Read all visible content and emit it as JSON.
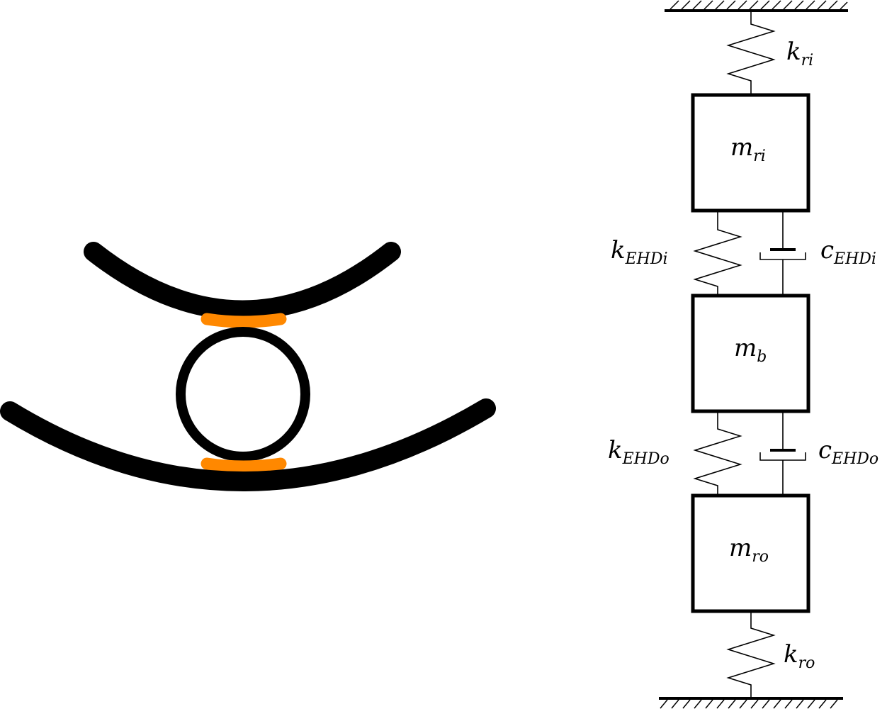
{
  "colors": {
    "stroke": "#000000",
    "contact": "#ff8800",
    "background": "#ffffff"
  },
  "labels": {
    "k_ri": {
      "main": "k",
      "sub": "ri"
    },
    "m_ri": {
      "main": "m",
      "sub": "ri"
    },
    "k_EHDi": {
      "main": "k",
      "sub": "EHDi"
    },
    "c_EHDi": {
      "main": "c",
      "sub": "EHDi"
    },
    "m_b": {
      "main": "m",
      "sub": "b"
    },
    "k_EHDo": {
      "main": "k",
      "sub": "EHDo"
    },
    "c_EHDo": {
      "main": "c",
      "sub": "EHDo"
    },
    "m_ro": {
      "main": "m",
      "sub": "ro"
    },
    "k_ro": {
      "main": "k",
      "sub": "ro"
    }
  }
}
